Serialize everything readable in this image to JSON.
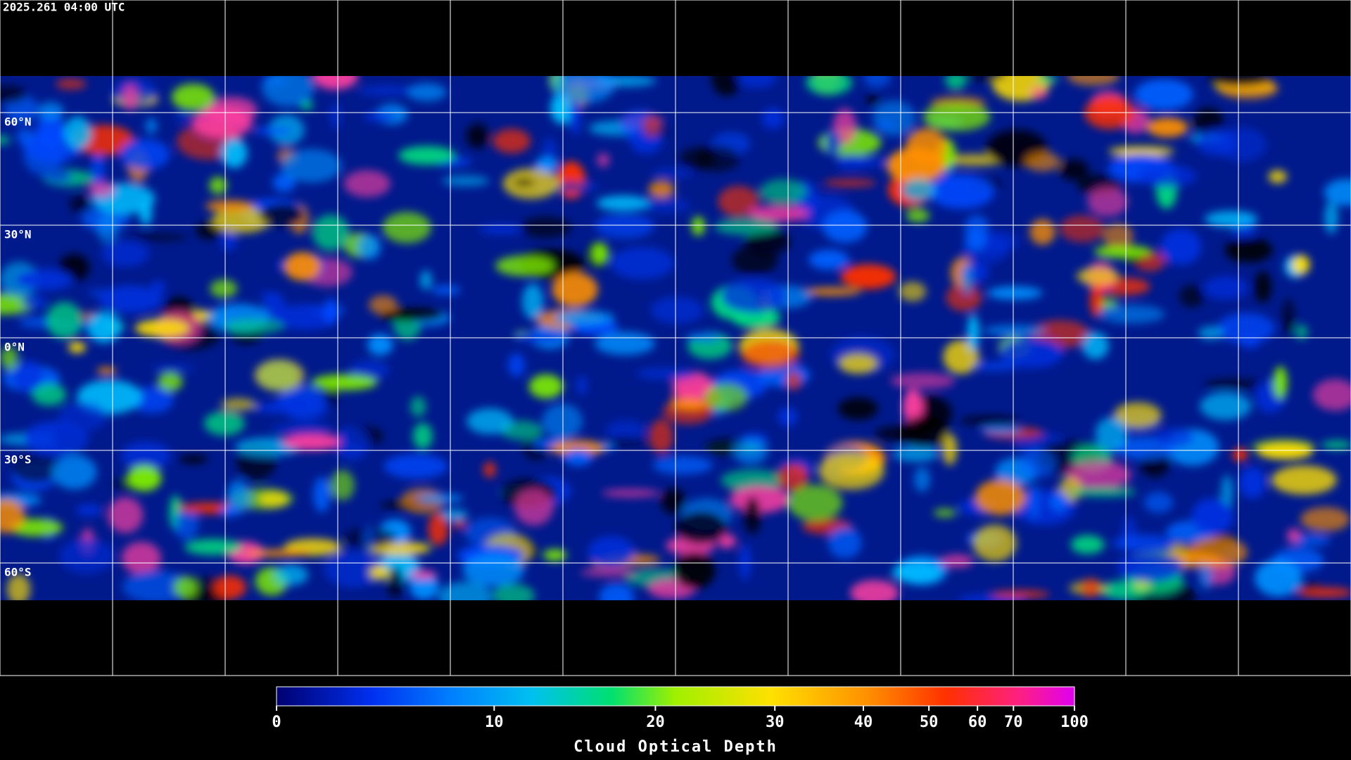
{
  "timestamp": "2025.261 04:00 UTC",
  "map": {
    "xlim": [
      -180,
      180
    ],
    "ylim": [
      -90,
      90
    ],
    "lat_lines": [
      {
        "value": 60,
        "label": "60°N"
      },
      {
        "value": 30,
        "label": "30°N"
      },
      {
        "value": 0,
        "label": "0°N"
      },
      {
        "value": -30,
        "label": "30°S"
      },
      {
        "value": -60,
        "label": "60°S"
      }
    ],
    "lon_lines": [
      -150,
      -120,
      -90,
      -60,
      -30,
      0,
      30,
      60,
      90,
      120,
      150
    ]
  },
  "colorbar": {
    "title": "Cloud Optical Depth",
    "lim": [
      0,
      100
    ],
    "ticks": [
      0,
      10,
      20,
      30,
      40,
      50,
      60,
      70,
      100
    ],
    "scale": "exponential"
  }
}
